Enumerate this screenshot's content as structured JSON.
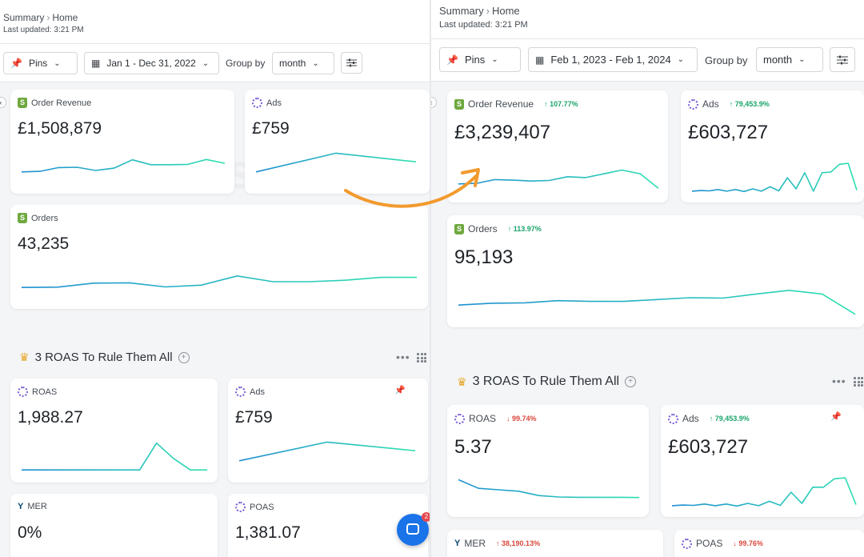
{
  "left": {
    "breadcrumb": {
      "parent": "Summary",
      "current": "Home"
    },
    "last_updated": "Last updated: 3:21 PM",
    "toolbar": {
      "pins_label": "Pins",
      "date_range": "Jan 1 - Dec 31, 2022",
      "group_by_label": "Group by",
      "group_by_value": "month"
    },
    "cards": {
      "order_revenue": {
        "title": "Order Revenue",
        "value": "£1,508,879",
        "series": [
          0.2,
          0.22,
          0.35,
          0.36,
          0.25,
          0.33,
          0.62,
          0.45,
          0.45,
          0.46,
          0.63,
          0.5
        ]
      },
      "ads": {
        "title": "Ads",
        "value": "£759",
        "series": [
          0.2,
          0.85,
          0.55
        ]
      },
      "orders": {
        "title": "Orders",
        "value": "43,235",
        "series": [
          0.3,
          0.31,
          0.45,
          0.46,
          0.32,
          0.38,
          0.7,
          0.5,
          0.5,
          0.55,
          0.65,
          0.65
        ]
      },
      "roas": {
        "title": "ROAS",
        "value": "1,988.27",
        "series": [
          0.05,
          0.05,
          0.05,
          0.05,
          0.05,
          0.05,
          0.05,
          0.05,
          0.98,
          0.45,
          0.05,
          0.05
        ]
      },
      "ads2": {
        "title": "Ads",
        "value": "£759",
        "series": [
          0.2,
          0.85,
          0.55
        ]
      },
      "mer": {
        "title": "MER",
        "value": "0%"
      },
      "poas": {
        "title": "POAS",
        "value": "1,381.07"
      }
    },
    "section_title": "3 ROAS To Rule Them All",
    "chat_badge": "2"
  },
  "right": {
    "breadcrumb": {
      "parent": "Summary",
      "current": "Home"
    },
    "last_updated": "Last updated: 3:21 PM",
    "toolbar": {
      "pins_label": "Pins",
      "date_range": "Feb 1, 2023 - Feb 1, 2024",
      "group_by_label": "Group by",
      "group_by_value": "month"
    },
    "cards": {
      "order_revenue": {
        "title": "Order Revenue",
        "change": "107.77%",
        "value": "£3,239,407",
        "series": [
          0.2,
          0.22,
          0.35,
          0.33,
          0.3,
          0.32,
          0.45,
          0.42,
          0.55,
          0.68,
          0.55,
          0.05
        ]
      },
      "ads": {
        "title": "Ads",
        "change": "79,453.9%",
        "value": "£603,727",
        "series": [
          0.05,
          0.07,
          0.06,
          0.1,
          0.05,
          0.1,
          0.04,
          0.12,
          0.05,
          0.18,
          0.06,
          0.45,
          0.12,
          0.6,
          0.05,
          0.6,
          0.62,
          0.85,
          0.88,
          0.08
        ]
      },
      "orders": {
        "title": "Orders",
        "change": "113.97%",
        "value": "95,193",
        "series": [
          0.3,
          0.35,
          0.36,
          0.42,
          0.4,
          0.4,
          0.45,
          0.5,
          0.49,
          0.6,
          0.7,
          0.6,
          0.05
        ]
      },
      "roas": {
        "title": "ROAS",
        "change": "99.74%",
        "value": "5.37",
        "series": [
          0.85,
          0.55,
          0.5,
          0.45,
          0.3,
          0.25,
          0.24,
          0.24,
          0.24,
          0.23
        ]
      },
      "ads2": {
        "title": "Ads",
        "change": "79,453.9%",
        "value": "£603,727",
        "series": [
          0.05,
          0.07,
          0.06,
          0.1,
          0.05,
          0.1,
          0.04,
          0.12,
          0.05,
          0.18,
          0.06,
          0.45,
          0.12,
          0.6,
          0.6,
          0.85,
          0.88,
          0.08
        ]
      },
      "mer": {
        "title": "MER",
        "change": "38,190.13%"
      },
      "poas": {
        "title": "POAS",
        "change": "99.76%"
      }
    },
    "section_title": "3 ROAS To Rule Them All"
  },
  "colors": {
    "accent": "#2a6fd6",
    "line_start": "#1f8fd1",
    "line_end": "#2ee0b0",
    "arrow": "#f29a2e",
    "up": "#1aa56b",
    "down": "#d9473a"
  }
}
